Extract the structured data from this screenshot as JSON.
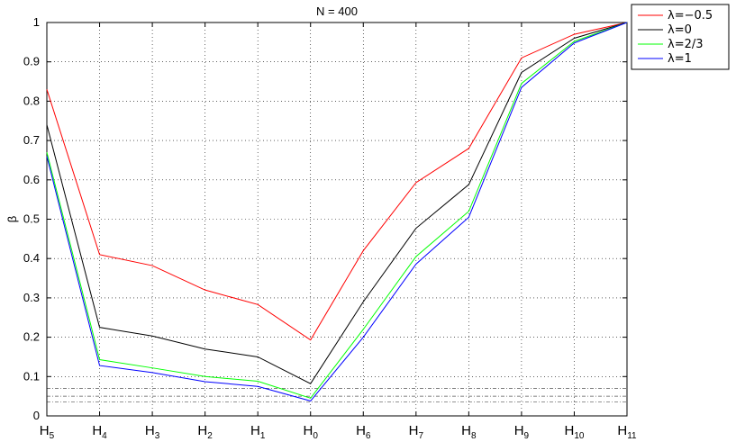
{
  "chart_data": {
    "type": "line",
    "title": "N = 400",
    "xlabel": "",
    "ylabel": "β",
    "categories": [
      {
        "base": "H",
        "sub": "5"
      },
      {
        "base": "H",
        "sub": "4"
      },
      {
        "base": "H",
        "sub": "3"
      },
      {
        "base": "H",
        "sub": "2"
      },
      {
        "base": "H",
        "sub": "1"
      },
      {
        "base": "H",
        "sub": "0"
      },
      {
        "base": "H",
        "sub": "6"
      },
      {
        "base": "H",
        "sub": "7"
      },
      {
        "base": "H",
        "sub": "8"
      },
      {
        "base": "H",
        "sub": "9"
      },
      {
        "base": "H",
        "sub": "10"
      },
      {
        "base": "H",
        "sub": "11"
      }
    ],
    "ylim": [
      0,
      1
    ],
    "yticks": [
      "0",
      "0.1",
      "0.2",
      "0.3",
      "0.4",
      "0.5",
      "0.6",
      "0.7",
      "0.8",
      "0.9",
      "1"
    ],
    "grid": true,
    "legend_position": "outside-top-right",
    "series": [
      {
        "name": "λ=−0.5",
        "color": "#ff0000",
        "values": [
          0.83,
          0.41,
          0.382,
          0.32,
          0.283,
          0.193,
          0.42,
          0.593,
          0.68,
          0.91,
          0.97,
          1.0
        ]
      },
      {
        "name": "λ=0",
        "color": "#000000",
        "values": [
          0.74,
          0.225,
          0.203,
          0.17,
          0.15,
          0.082,
          0.29,
          0.477,
          0.588,
          0.873,
          0.96,
          1.0
        ]
      },
      {
        "name": "λ=2/3",
        "color": "#00ff00",
        "values": [
          0.67,
          0.143,
          0.122,
          0.1,
          0.088,
          0.045,
          0.22,
          0.405,
          0.52,
          0.845,
          0.952,
          1.0
        ]
      },
      {
        "name": "λ=1",
        "color": "#0000ff",
        "values": [
          0.66,
          0.128,
          0.11,
          0.087,
          0.075,
          0.038,
          0.2,
          0.386,
          0.505,
          0.835,
          0.948,
          1.0
        ]
      }
    ],
    "reference_lines": [
      0.07,
      0.05,
      0.035
    ]
  }
}
